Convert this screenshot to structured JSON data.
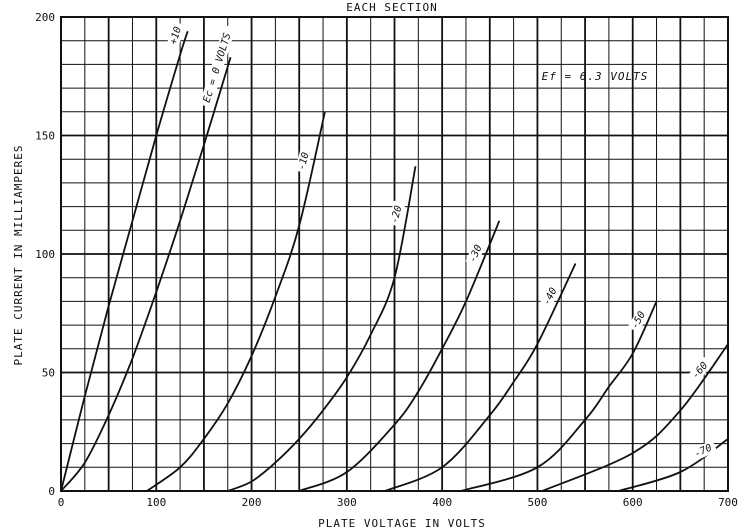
{
  "chart_data": {
    "type": "line",
    "title": "EACH SECTION",
    "annotation": "Ef = 6.3 VOLTS",
    "xlabel": "PLATE VOLTAGE IN VOLTS",
    "ylabel": "PLATE CURRENT IN MILLIAMPERES",
    "xlim": [
      0,
      700
    ],
    "ylim": [
      0,
      200
    ],
    "x_ticks": [
      0,
      100,
      200,
      300,
      400,
      500,
      600,
      700
    ],
    "y_ticks": [
      0,
      50,
      100,
      150,
      200
    ],
    "x_tick_labels": [
      "0",
      "100",
      "200",
      "300",
      "400",
      "500",
      "600",
      "700"
    ],
    "y_tick_labels": [
      "0",
      "50",
      "100",
      "150",
      "200"
    ],
    "grid": true,
    "series": [
      {
        "name": "+10",
        "label": "+10",
        "x": [
          0,
          25,
          50,
          75,
          100,
          125,
          133
        ],
        "y": [
          0,
          40,
          78,
          114,
          150,
          184,
          194
        ]
      },
      {
        "name": "0",
        "label": "Ec = 0 VOLTS",
        "x": [
          0,
          25,
          50,
          75,
          100,
          125,
          150,
          178
        ],
        "y": [
          0,
          12,
          32,
          56,
          84,
          114,
          146,
          183
        ]
      },
      {
        "name": "-10",
        "label": "-10",
        "x": [
          90,
          125,
          150,
          175,
          200,
          225,
          250,
          277
        ],
        "y": [
          0,
          10,
          22,
          37,
          57,
          82,
          112,
          160
        ]
      },
      {
        "name": "-20",
        "label": "-20",
        "x": [
          175,
          200,
          225,
          250,
          275,
          300,
          325,
          350,
          372
        ],
        "y": [
          0,
          4,
          12,
          22,
          34,
          48,
          66,
          90,
          137
        ]
      },
      {
        "name": "-30",
        "label": "-30",
        "x": [
          250,
          300,
          350,
          375,
          400,
          425,
          460
        ],
        "y": [
          0,
          8,
          28,
          42,
          60,
          80,
          114
        ]
      },
      {
        "name": "-40",
        "label": "-40",
        "x": [
          340,
          400,
          450,
          475,
          500,
          540
        ],
        "y": [
          0,
          10,
          32,
          46,
          62,
          96
        ]
      },
      {
        "name": "-50",
        "label": "-50",
        "x": [
          420,
          500,
          550,
          575,
          600,
          625
        ],
        "y": [
          0,
          10,
          30,
          44,
          58,
          80
        ]
      },
      {
        "name": "-60",
        "label": "-60",
        "x": [
          505,
          600,
          650,
          700
        ],
        "y": [
          0,
          16,
          34,
          62
        ]
      },
      {
        "name": "-70",
        "label": "-70",
        "x": [
          585,
          650,
          700
        ],
        "y": [
          0,
          8,
          22
        ]
      }
    ]
  }
}
